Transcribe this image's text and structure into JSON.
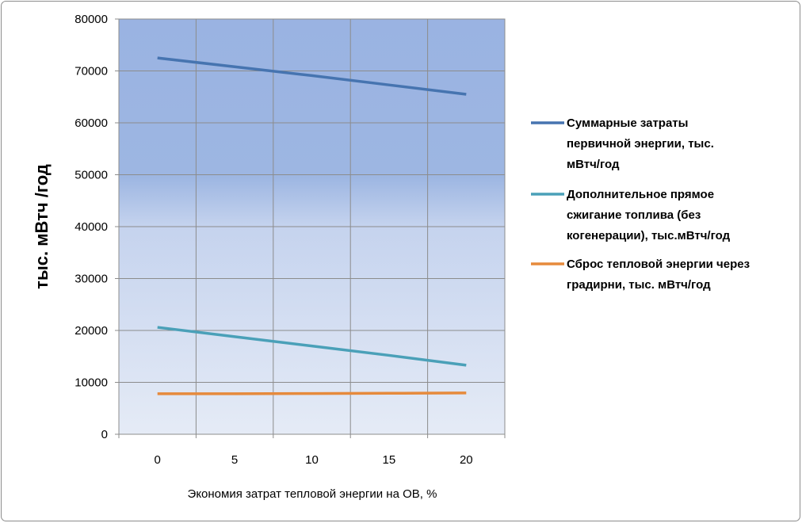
{
  "chart_data": {
    "type": "line",
    "title": "",
    "xlabel": "Экономия затрат тепловой энергии на ОВ, %",
    "ylabel": "тыс. мВтч /год",
    "ylim": [
      0,
      80000
    ],
    "yticks": [
      "0",
      "10000",
      "20000",
      "30000",
      "40000",
      "50000",
      "60000",
      "70000",
      "80000"
    ],
    "categories": [
      "0",
      "5",
      "10",
      "15",
      "20"
    ],
    "grid": true,
    "legend_position": "right",
    "series": [
      {
        "name": "Суммарные затраты первичной энергии, тыс. мВтч/год",
        "legend_lines": [
          "Суммарные затраты",
          "первичной энергии, тыс.",
          "мВтч/год"
        ],
        "color": "#4674b0",
        "values": [
          72500,
          70800,
          69100,
          67300,
          65500
        ]
      },
      {
        "name": "Дополнительное прямое сжигание топлива (без когенерации), тыс.мВтч/год",
        "legend_lines": [
          "Дополнительное прямое",
          "сжигание топлива (без",
          "когенерации), тыс.мВтч/год"
        ],
        "color": "#4aa0b8",
        "values": [
          20600,
          18800,
          17000,
          15200,
          13300
        ]
      },
      {
        "name": "Сброс тепловой энергии через градирни, тыс. мВтч/год",
        "legend_lines": [
          "Сброс тепловой энергии через",
          "градирни, тыс. мВтч/год"
        ],
        "color": "#e68a3c",
        "values": [
          7800,
          7800,
          7850,
          7900,
          7950
        ]
      }
    ]
  }
}
